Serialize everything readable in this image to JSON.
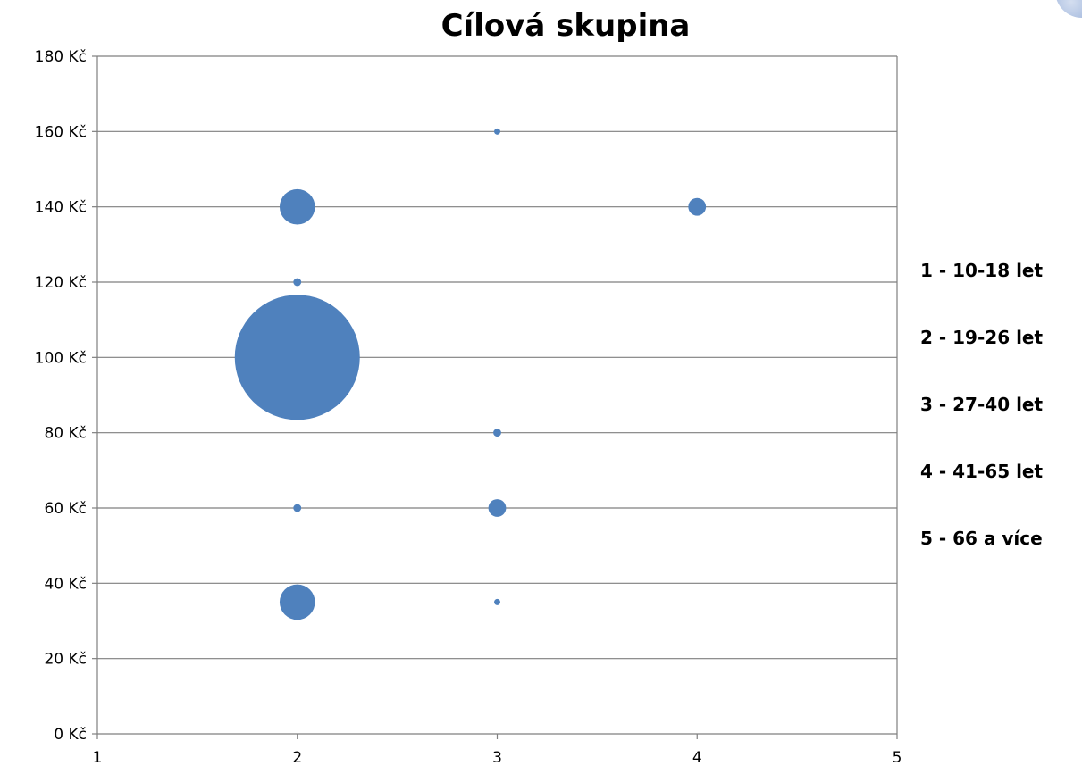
{
  "chart_data": {
    "type": "bubble",
    "title": "Cílová skupina",
    "xlabel": "",
    "ylabel": "",
    "xlim": [
      1,
      5
    ],
    "ylim": [
      0,
      180
    ],
    "x_ticks": [
      "1",
      "2",
      "3",
      "4",
      "5"
    ],
    "y_ticks": [
      "0 Kč",
      "20 Kč",
      "40 Kč",
      "60 Kč",
      "80 Kč",
      "100 Kč",
      "120 Kč",
      "140 Kč",
      "160 Kč",
      "180 Kč"
    ],
    "grid": true,
    "bubble_color": "#4F81BD",
    "points": [
      {
        "x": 2,
        "y": 100,
        "size": 100
      },
      {
        "x": 2,
        "y": 140,
        "size": 8
      },
      {
        "x": 2,
        "y": 35,
        "size": 8
      },
      {
        "x": 2,
        "y": 120,
        "size": 0.4
      },
      {
        "x": 2,
        "y": 60,
        "size": 0.4
      },
      {
        "x": 3,
        "y": 160,
        "size": 0.07
      },
      {
        "x": 3,
        "y": 80,
        "size": 0.4
      },
      {
        "x": 3,
        "y": 60,
        "size": 2
      },
      {
        "x": 3,
        "y": 35,
        "size": 0.07
      },
      {
        "x": 4,
        "y": 140,
        "size": 2
      }
    ],
    "annotations": [
      "1 - 10-18 let",
      "2 - 19-26 let",
      "3 - 27-40 let",
      "4 - 41-65 let",
      "5 - 66 a více"
    ]
  }
}
